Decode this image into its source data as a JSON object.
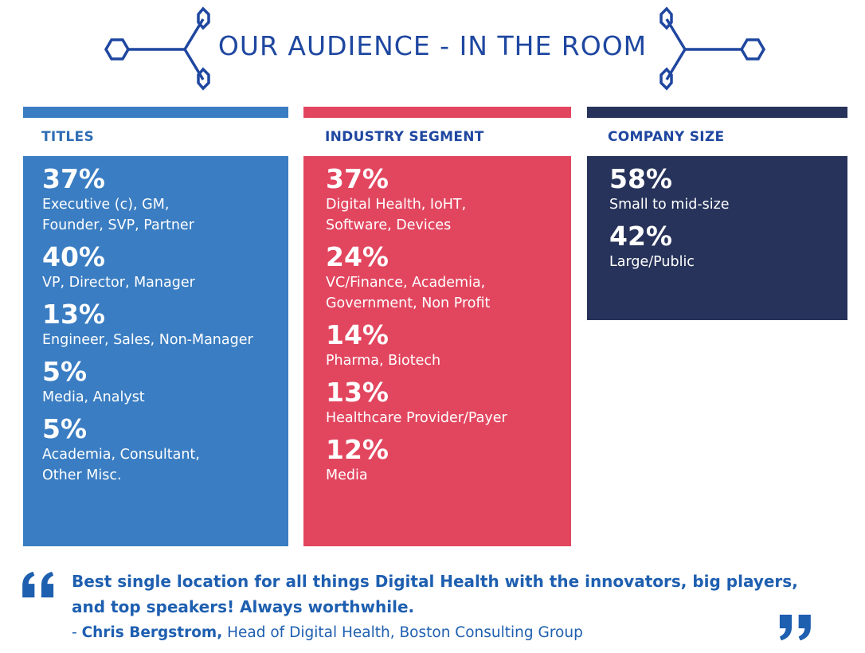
{
  "header": {
    "title": "OUR AUDIENCE - IN THE ROOM"
  },
  "colors": {
    "titles": "#3a7dc2",
    "industry": "#e2465f",
    "company": "#27335a",
    "heading_titles": "#2f6db4",
    "heading_industry": "#1f47a0",
    "heading_company": "#1f47a0",
    "quote": "#1e5fb0"
  },
  "columns": [
    {
      "heading": "TITLES",
      "entries": [
        {
          "percent": "37%",
          "label": "Executive (c), GM,\nFounder, SVP, Partner"
        },
        {
          "percent": "40%",
          "label": "VP, Director, Manager"
        },
        {
          "percent": "13%",
          "label": "Engineer, Sales, Non-Manager"
        },
        {
          "percent": "5%",
          "label": "Media, Analyst"
        },
        {
          "percent": "5%",
          "label": "Academia, Consultant,\nOther Misc."
        }
      ]
    },
    {
      "heading": "INDUSTRY SEGMENT",
      "entries": [
        {
          "percent": "37%",
          "label": "Digital Health, IoHT,\nSoftware, Devices"
        },
        {
          "percent": "24%",
          "label": "VC/Finance, Academia,\nGovernment, Non Profit"
        },
        {
          "percent": "14%",
          "label": "Pharma, Biotech"
        },
        {
          "percent": "13%",
          "label": "Healthcare Provider/Payer"
        },
        {
          "percent": "12%",
          "label": "Media"
        }
      ]
    },
    {
      "heading": "COMPANY SIZE",
      "entries": [
        {
          "percent": "58%",
          "label": "Small to mid-size"
        },
        {
          "percent": "42%",
          "label": "Large/Public"
        }
      ]
    }
  ],
  "quote": {
    "text": "Best single location for all things Digital Health with the innovators, big players, and top speakers! Always worthwhile.",
    "dash": "- ",
    "author": "Chris Bergstrom,",
    "role": " Head of Digital Health, Boston Consulting Group",
    "open_icon": "open-quote-icon",
    "close_icon": "close-quote-icon"
  }
}
